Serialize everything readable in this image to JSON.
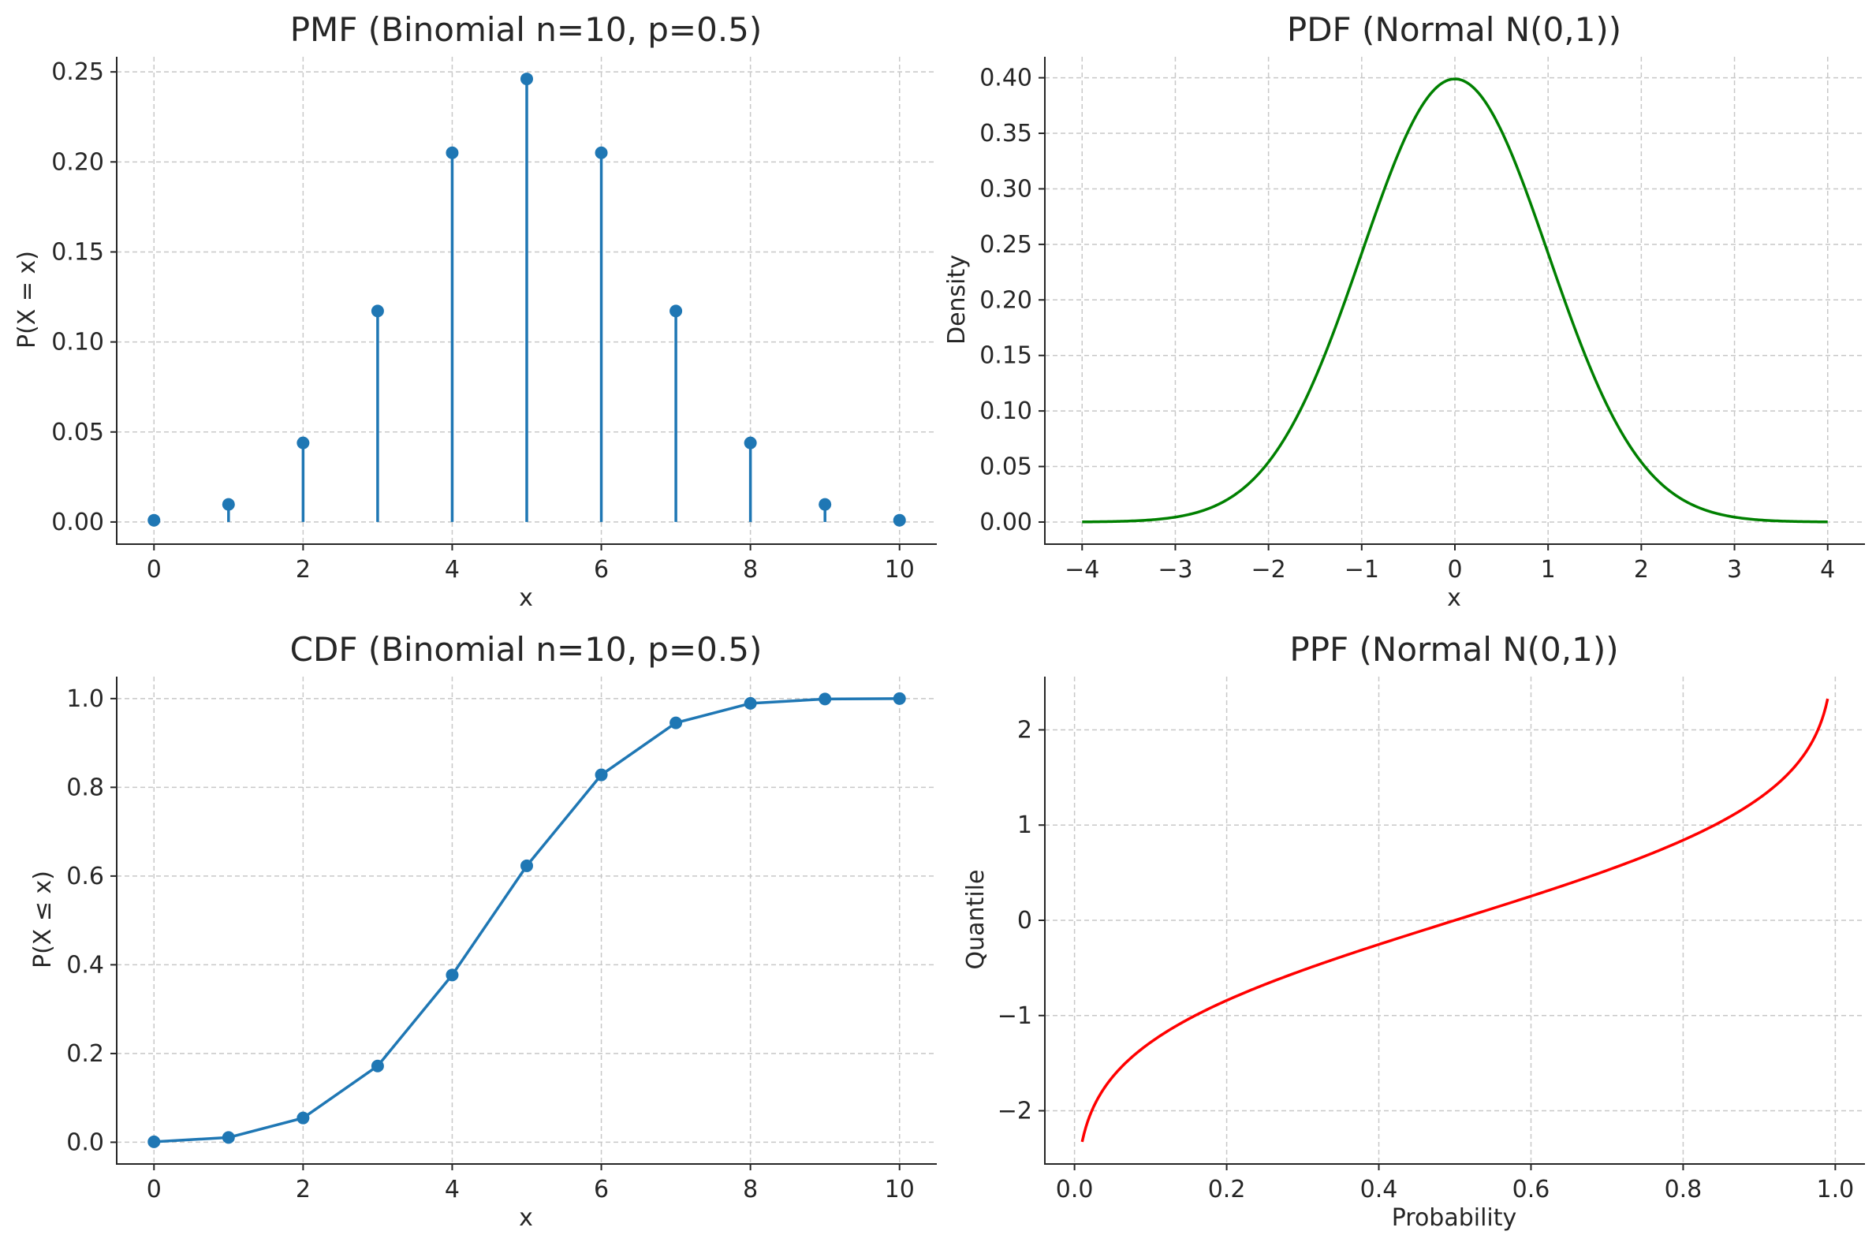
{
  "chart_data": [
    {
      "type": "stem",
      "title": "PMF (Binomial n=10, p=0.5)",
      "xlabel": "x",
      "ylabel": "P(X = x)",
      "x": [
        0,
        1,
        2,
        3,
        4,
        5,
        6,
        7,
        8,
        9,
        10
      ],
      "y": [
        0.000977,
        0.009766,
        0.043945,
        0.117188,
        0.205078,
        0.246094,
        0.205078,
        0.117188,
        0.043945,
        0.009766,
        0.000977
      ],
      "xlim": [
        -0.5,
        10.5
      ],
      "ylim": [
        -0.0123,
        0.2584
      ],
      "xticks": [
        0,
        2,
        4,
        6,
        8,
        10
      ],
      "yticks": [
        0.0,
        0.05,
        0.1,
        0.15,
        0.2,
        0.25
      ],
      "xtick_labels": [
        "0",
        "2",
        "4",
        "6",
        "8",
        "10"
      ],
      "ytick_labels": [
        "0.00",
        "0.05",
        "0.10",
        "0.15",
        "0.20",
        "0.25"
      ],
      "color": "#1f77b4",
      "grid": true
    },
    {
      "type": "line",
      "title": "PDF (Normal N(0,1))",
      "xlabel": "x",
      "ylabel": "Density",
      "function": "normal_pdf",
      "x_range": [
        -4,
        4
      ],
      "xlim": [
        -4.4,
        4.4
      ],
      "ylim": [
        -0.0199,
        0.4189
      ],
      "xticks": [
        -4,
        -3,
        -2,
        -1,
        0,
        1,
        2,
        3,
        4
      ],
      "yticks": [
        0.0,
        0.05,
        0.1,
        0.15,
        0.2,
        0.25,
        0.3,
        0.35,
        0.4
      ],
      "xtick_labels": [
        "−4",
        "−3",
        "−2",
        "−1",
        "0",
        "1",
        "2",
        "3",
        "4"
      ],
      "ytick_labels": [
        "0.00",
        "0.05",
        "0.10",
        "0.15",
        "0.20",
        "0.25",
        "0.30",
        "0.35",
        "0.40"
      ],
      "color": "#008000",
      "grid": true
    },
    {
      "type": "line",
      "markers": true,
      "title": "CDF (Binomial n=10, p=0.5)",
      "xlabel": "x",
      "ylabel": "P(X ≤ x)",
      "x": [
        0,
        1,
        2,
        3,
        4,
        5,
        6,
        7,
        8,
        9,
        10
      ],
      "y": [
        0.000977,
        0.010742,
        0.054688,
        0.171875,
        0.376953,
        0.623047,
        0.828125,
        0.945313,
        0.989258,
        0.999023,
        1.0
      ],
      "xlim": [
        -0.5,
        10.5
      ],
      "ylim": [
        -0.049,
        1.0495
      ],
      "xticks": [
        0,
        2,
        4,
        6,
        8,
        10
      ],
      "yticks": [
        0.0,
        0.2,
        0.4,
        0.6,
        0.8,
        1.0
      ],
      "xtick_labels": [
        "0",
        "2",
        "4",
        "6",
        "8",
        "10"
      ],
      "ytick_labels": [
        "0.0",
        "0.2",
        "0.4",
        "0.6",
        "0.8",
        "1.0"
      ],
      "color": "#1f77b4",
      "grid": true
    },
    {
      "type": "line",
      "title": "PPF (Normal N(0,1))",
      "xlabel": "Probability",
      "ylabel": "Quantile",
      "function": "normal_ppf",
      "x_range": [
        0.01,
        0.99
      ],
      "xlim": [
        -0.039,
        1.039
      ],
      "ylim": [
        -2.5589,
        2.5589
      ],
      "xticks": [
        0.0,
        0.2,
        0.4,
        0.6,
        0.8,
        1.0
      ],
      "yticks": [
        -2,
        -1,
        0,
        1,
        2
      ],
      "xtick_labels": [
        "0.0",
        "0.2",
        "0.4",
        "0.6",
        "0.8",
        "1.0"
      ],
      "ytick_labels": [
        "−2",
        "−1",
        "0",
        "1",
        "2"
      ],
      "color": "#ff0000",
      "grid": true
    }
  ]
}
